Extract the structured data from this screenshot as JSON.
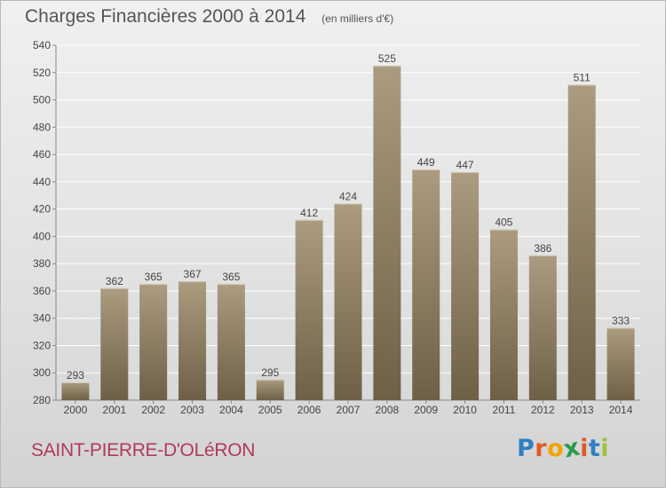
{
  "header": {
    "title": "Charges Financières 2000 à 2014",
    "unit": "(en milliers d'€)"
  },
  "footer": {
    "commune": "SAINT-PIERRE-D'OLéRON",
    "logo_letters": [
      "P",
      "r",
      "o",
      "x",
      "i",
      "t",
      "i"
    ],
    "logo_colors": [
      "#2f7fc1",
      "#e2592a",
      "#f2a400",
      "#2a9a4a",
      "#e2592a",
      "#2f7fc1",
      "#9bc23c"
    ]
  },
  "colors": {
    "bar_top": "#ab9c80",
    "bar_bottom": "#6e6046",
    "grid": "#ffffff",
    "axis": "#888888"
  },
  "chart_data": {
    "type": "bar",
    "title": "Charges Financières 2000 à 2014",
    "subtitle": "(en milliers d'€)",
    "xlabel": "",
    "ylabel": "",
    "categories": [
      "2000",
      "2001",
      "2002",
      "2003",
      "2004",
      "2005",
      "2006",
      "2007",
      "2008",
      "2009",
      "2010",
      "2011",
      "2012",
      "2013",
      "2014"
    ],
    "values": [
      293,
      362,
      365,
      367,
      365,
      295,
      412,
      424,
      525,
      449,
      447,
      405,
      386,
      511,
      333
    ],
    "ylim": [
      280,
      540
    ],
    "yticks": [
      280,
      300,
      320,
      340,
      360,
      380,
      400,
      420,
      440,
      460,
      480,
      500,
      520,
      540
    ],
    "grid": true,
    "data_labels": true
  }
}
